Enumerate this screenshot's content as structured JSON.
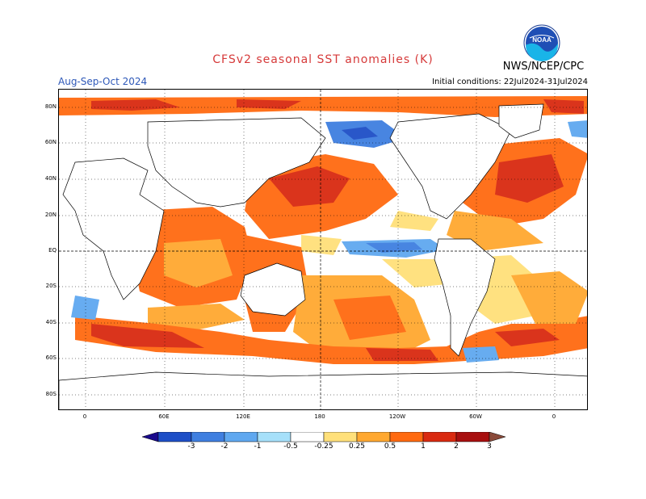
{
  "title": "CFSv2 seasonal SST anomalies (K)",
  "season": "Aug-Sep-Oct 2024",
  "initial_conditions": "Initial conditions: 22Jul2024-31Jul2024",
  "agency": "NWS/NCEP/CPC",
  "logo_text": "NOAA",
  "lat_labels": [
    "80N",
    "60N",
    "40N",
    "20N",
    "EQ",
    "20S",
    "40S",
    "60S",
    "80S"
  ],
  "lon_labels": [
    "0",
    "60E",
    "120E",
    "180",
    "120W",
    "60W",
    "0"
  ],
  "colorbar": {
    "labels": [
      "-3",
      "-2",
      "-1",
      "-0.5",
      "-0.25",
      "0.25",
      "0.5",
      "1",
      "2",
      "3"
    ],
    "colors": [
      "#1a0a8c",
      "#1e4fc7",
      "#3f7fe0",
      "#5fa8f0",
      "#a6e0fa",
      "#ffffff",
      "#ffe07a",
      "#ffa830",
      "#ff6a10",
      "#d92a10",
      "#a80f0f",
      "#8a4a3a"
    ]
  }
}
